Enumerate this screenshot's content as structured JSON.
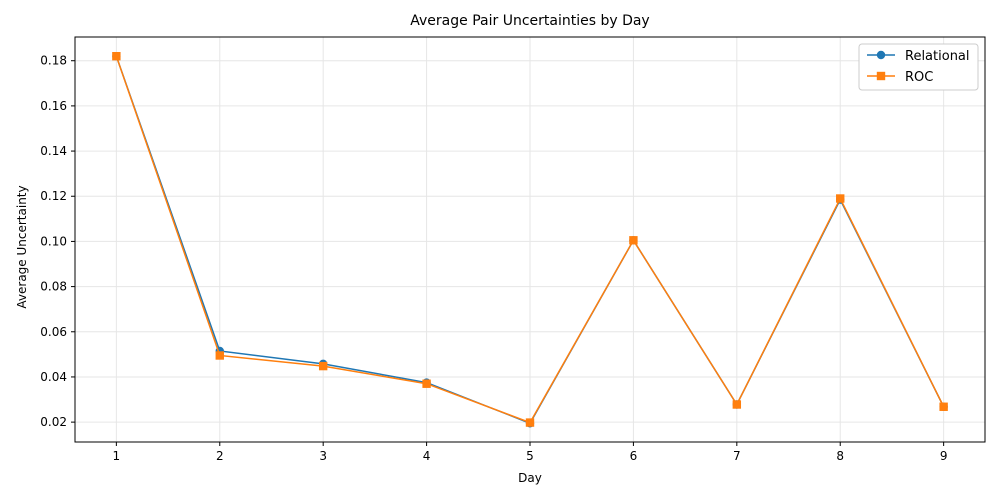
{
  "chart_data": {
    "type": "line",
    "title": "Average Pair Uncertainties by Day",
    "xlabel": "Day",
    "ylabel": "Average Uncertainty",
    "x": [
      1,
      2,
      3,
      4,
      5,
      6,
      7,
      8,
      9
    ],
    "xlim": [
      0.6,
      9.4
    ],
    "ylim": [
      0.0112,
      0.1905
    ],
    "yticks": [
      0.02,
      0.04,
      0.06,
      0.08,
      0.1,
      0.12,
      0.14,
      0.16,
      0.18
    ],
    "ytick_labels": [
      "0.02",
      "0.04",
      "0.06",
      "0.08",
      "0.10",
      "0.12",
      "0.14",
      "0.16",
      "0.18"
    ],
    "xticks": [
      1,
      2,
      3,
      4,
      5,
      6,
      7,
      8,
      9
    ],
    "xtick_labels": [
      "1",
      "2",
      "3",
      "4",
      "5",
      "6",
      "7",
      "8",
      "9"
    ],
    "grid": true,
    "legend_position": "top-right",
    "series": [
      {
        "name": "Relational",
        "color": "#1f77b4",
        "marker": "circle",
        "values": [
          0.182,
          0.0515,
          0.0458,
          0.0375,
          0.0195,
          0.1005,
          0.0278,
          0.1185,
          0.0268
        ]
      },
      {
        "name": "ROC",
        "color": "#ff7f0e",
        "marker": "square",
        "values": [
          0.182,
          0.0495,
          0.0448,
          0.037,
          0.0198,
          0.1005,
          0.0278,
          0.119,
          0.0268
        ]
      }
    ]
  }
}
